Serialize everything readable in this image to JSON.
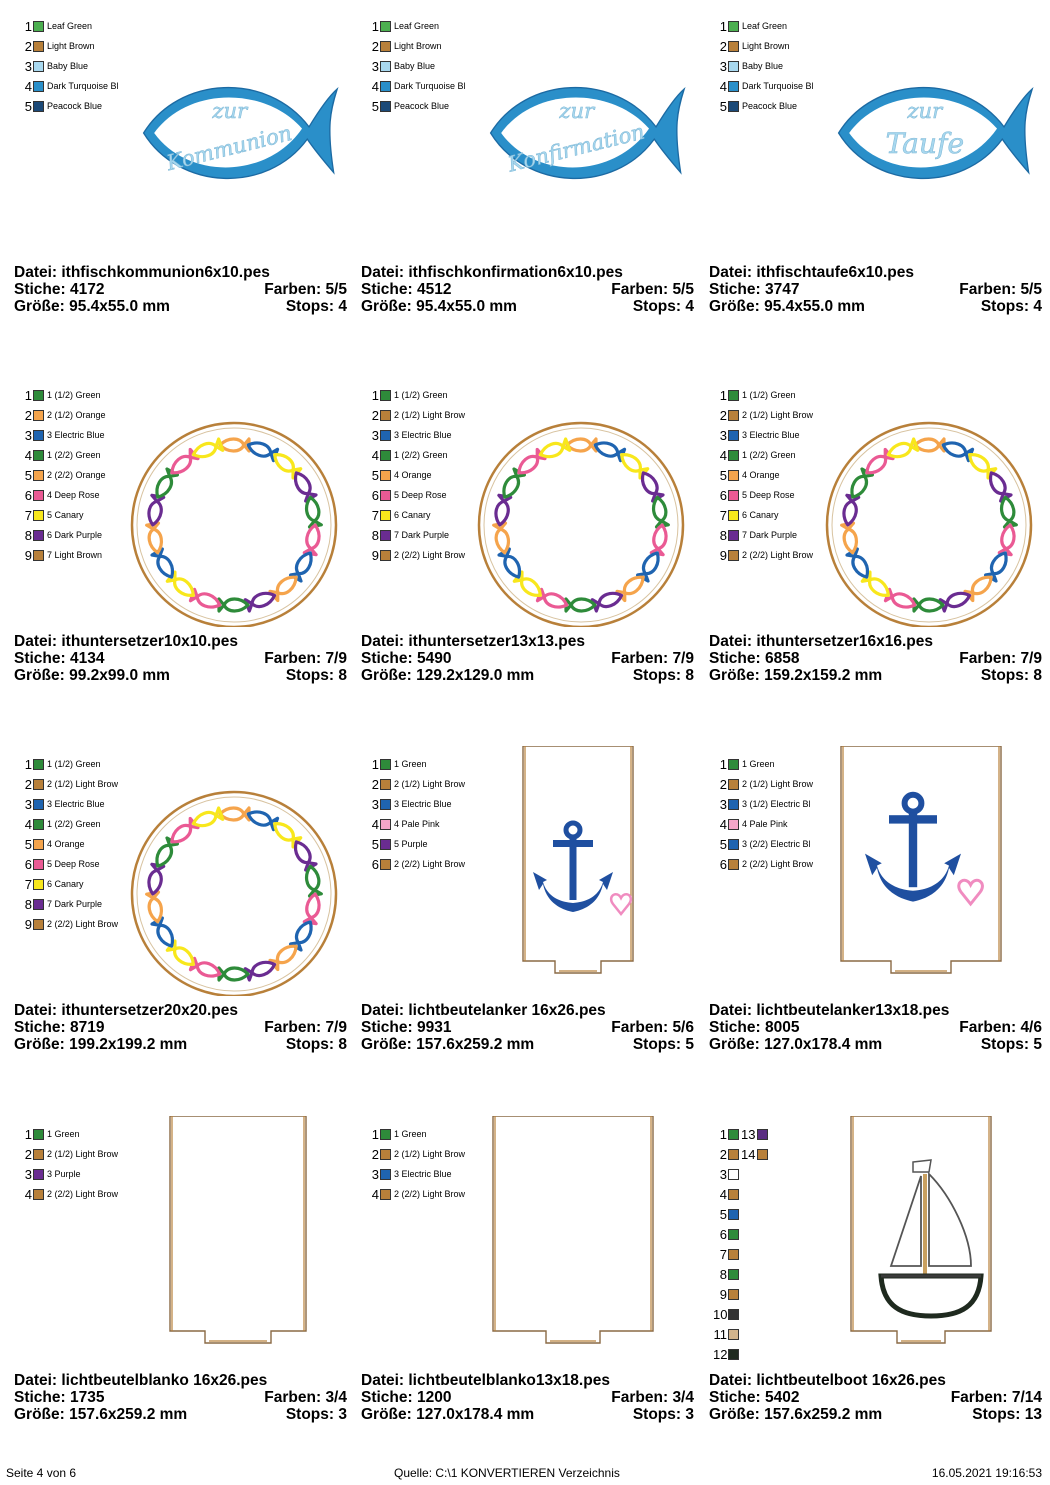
{
  "designs": [
    {
      "id": "fisch-kommunion",
      "art": "fish",
      "text1": "zur",
      "text2": "Kommunion",
      "file_label": "Datei: ithfischkommunion6x10.pes",
      "stitches_label": "Stiche: 4172",
      "colors_label": "Farben: 5/5",
      "size_label": "Größe: 95.4x55.0 mm",
      "stops_label": "Stops: 4",
      "colors": [
        {
          "num": "1",
          "name": "Leaf Green",
          "hex": "#4caf50"
        },
        {
          "num": "2",
          "name": "Light Brown",
          "hex": "#b8803a"
        },
        {
          "num": "3",
          "name": "Baby Blue",
          "hex": "#a8d8ef"
        },
        {
          "num": "4",
          "name": "Dark Turquoise Bl",
          "hex": "#2a8fc9"
        },
        {
          "num": "5",
          "name": "Peacock Blue",
          "hex": "#1c4a78"
        }
      ]
    },
    {
      "id": "fisch-konfirmation",
      "art": "fish",
      "text1": "zur",
      "text2": "Konfirmation",
      "file_label": "Datei: ithfischkonfirmation6x10.pes",
      "stitches_label": "Stiche: 4512",
      "colors_label": "Farben: 5/5",
      "size_label": "Größe: 95.4x55.0 mm",
      "stops_label": "Stops: 4",
      "colors": [
        {
          "num": "1",
          "name": "Leaf Green",
          "hex": "#4caf50"
        },
        {
          "num": "2",
          "name": "Light Brown",
          "hex": "#b8803a"
        },
        {
          "num": "3",
          "name": "Baby Blue",
          "hex": "#a8d8ef"
        },
        {
          "num": "4",
          "name": "Dark Turquoise Bl",
          "hex": "#2a8fc9"
        },
        {
          "num": "5",
          "name": "Peacock Blue",
          "hex": "#1c4a78"
        }
      ]
    },
    {
      "id": "fisch-taufe",
      "art": "fish",
      "text1": "zur",
      "text2": "Taufe",
      "file_label": "Datei: ithfischtaufe6x10.pes",
      "stitches_label": "Stiche: 3747",
      "colors_label": "Farben: 5/5",
      "size_label": "Größe: 95.4x55.0 mm",
      "stops_label": "Stops: 4",
      "colors": [
        {
          "num": "1",
          "name": "Leaf Green",
          "hex": "#4caf50"
        },
        {
          "num": "2",
          "name": "Light Brown",
          "hex": "#b8803a"
        },
        {
          "num": "3",
          "name": "Baby Blue",
          "hex": "#a8d8ef"
        },
        {
          "num": "4",
          "name": "Dark Turquoise Bl",
          "hex": "#2a8fc9"
        },
        {
          "num": "5",
          "name": "Peacock Blue",
          "hex": "#1c4a78"
        }
      ]
    },
    {
      "id": "untersetzer-10",
      "art": "ring",
      "file_label": "Datei: ithuntersetzer10x10.pes",
      "stitches_label": "Stiche: 4134",
      "colors_label": "Farben: 7/9",
      "size_label": "Größe: 99.2x99.0 mm",
      "stops_label": "Stops: 8",
      "colors": [
        {
          "num": "1",
          "name": "1 (1/2) Green",
          "hex": "#2e8b3a"
        },
        {
          "num": "2",
          "name": "2 (1/2) Orange",
          "hex": "#f5a44c"
        },
        {
          "num": "3",
          "name": "3 Electric Blue",
          "hex": "#1f64b0"
        },
        {
          "num": "4",
          "name": "1 (2/2) Green",
          "hex": "#2e8b3a"
        },
        {
          "num": "5",
          "name": "2 (2/2) Orange",
          "hex": "#f5a44c"
        },
        {
          "num": "6",
          "name": "4 Deep Rose",
          "hex": "#ea5a94"
        },
        {
          "num": "7",
          "name": "5 Canary",
          "hex": "#f8e71c"
        },
        {
          "num": "8",
          "name": "6 Dark Purple",
          "hex": "#6a2c91"
        },
        {
          "num": "9",
          "name": "7 Light Brown",
          "hex": "#b8803a"
        }
      ]
    },
    {
      "id": "untersetzer-13",
      "art": "ring",
      "file_label": "Datei: ithuntersetzer13x13.pes",
      "stitches_label": "Stiche: 5490",
      "colors_label": "Farben: 7/9",
      "size_label": "Größe: 129.2x129.0 mm",
      "stops_label": "Stops: 8",
      "colors": [
        {
          "num": "1",
          "name": "1 (1/2) Green",
          "hex": "#2e8b3a"
        },
        {
          "num": "2",
          "name": "2 (1/2) Light Brow",
          "hex": "#b8803a"
        },
        {
          "num": "3",
          "name": "3 Electric Blue",
          "hex": "#1f64b0"
        },
        {
          "num": "4",
          "name": "1 (2/2) Green",
          "hex": "#2e8b3a"
        },
        {
          "num": "5",
          "name": "4 Orange",
          "hex": "#f5a44c"
        },
        {
          "num": "6",
          "name": "5 Deep Rose",
          "hex": "#ea5a94"
        },
        {
          "num": "7",
          "name": "6 Canary",
          "hex": "#f8e71c"
        },
        {
          "num": "8",
          "name": "7 Dark Purple",
          "hex": "#6a2c91"
        },
        {
          "num": "9",
          "name": "2 (2/2) Light Brow",
          "hex": "#b8803a"
        }
      ]
    },
    {
      "id": "untersetzer-16",
      "art": "ring",
      "file_label": "Datei: ithuntersetzer16x16.pes",
      "stitches_label": "Stiche: 6858",
      "colors_label": "Farben: 7/9",
      "size_label": "Größe: 159.2x159.2 mm",
      "stops_label": "Stops: 8",
      "colors": [
        {
          "num": "1",
          "name": "1 (1/2) Green",
          "hex": "#2e8b3a"
        },
        {
          "num": "2",
          "name": "2 (1/2) Light Brow",
          "hex": "#b8803a"
        },
        {
          "num": "3",
          "name": "3 Electric Blue",
          "hex": "#1f64b0"
        },
        {
          "num": "4",
          "name": "1 (2/2) Green",
          "hex": "#2e8b3a"
        },
        {
          "num": "5",
          "name": "4 Orange",
          "hex": "#f5a44c"
        },
        {
          "num": "6",
          "name": "5 Deep Rose",
          "hex": "#ea5a94"
        },
        {
          "num": "7",
          "name": "6 Canary",
          "hex": "#f8e71c"
        },
        {
          "num": "8",
          "name": "7 Dark Purple",
          "hex": "#6a2c91"
        },
        {
          "num": "9",
          "name": "2 (2/2) Light Brow",
          "hex": "#b8803a"
        }
      ]
    },
    {
      "id": "untersetzer-20",
      "art": "ring",
      "file_label": "Datei: ithuntersetzer20x20.pes",
      "stitches_label": "Stiche: 8719",
      "colors_label": "Farben: 7/9",
      "size_label": "Größe: 199.2x199.2 mm",
      "stops_label": "Stops: 8",
      "colors": [
        {
          "num": "1",
          "name": "1 (1/2) Green",
          "hex": "#2e8b3a"
        },
        {
          "num": "2",
          "name": "2 (1/2) Light Brow",
          "hex": "#b8803a"
        },
        {
          "num": "3",
          "name": "3 Electric Blue",
          "hex": "#1f64b0"
        },
        {
          "num": "4",
          "name": "1 (2/2) Green",
          "hex": "#2e8b3a"
        },
        {
          "num": "5",
          "name": "4 Orange",
          "hex": "#f5a44c"
        },
        {
          "num": "6",
          "name": "5 Deep Rose",
          "hex": "#ea5a94"
        },
        {
          "num": "7",
          "name": "6 Canary",
          "hex": "#f8e71c"
        },
        {
          "num": "8",
          "name": "7 Dark Purple",
          "hex": "#6a2c91"
        },
        {
          "num": "9",
          "name": "2 (2/2) Light Brow",
          "hex": "#b8803a"
        }
      ]
    },
    {
      "id": "lichtbeutel-anker-16",
      "art": "bag-anchor",
      "file_label": "Datei: lichtbeutelanker 16x26.pes",
      "stitches_label": "Stiche: 9931",
      "colors_label": "Farben: 5/6",
      "size_label": "Größe: 157.6x259.2 mm",
      "stops_label": "Stops: 5",
      "colors": [
        {
          "num": "1",
          "name": "1 Green",
          "hex": "#2e8b3a"
        },
        {
          "num": "2",
          "name": "2 (1/2) Light Brow",
          "hex": "#b8803a"
        },
        {
          "num": "3",
          "name": "3 Electric Blue",
          "hex": "#1f64b0"
        },
        {
          "num": "4",
          "name": "4 Pale Pink",
          "hex": "#f4a6c8"
        },
        {
          "num": "5",
          "name": "5 Purple",
          "hex": "#6a2c91"
        },
        {
          "num": "6",
          "name": "2 (2/2) Light Brow",
          "hex": "#b8803a"
        }
      ]
    },
    {
      "id": "lichtbeutel-anker-13",
      "art": "bag-anchor-large",
      "file_label": "Datei: lichtbeutelanker13x18.pes",
      "stitches_label": "Stiche: 8005",
      "colors_label": "Farben: 4/6",
      "size_label": "Größe: 127.0x178.4 mm",
      "stops_label": "Stops: 5",
      "colors": [
        {
          "num": "1",
          "name": "1 Green",
          "hex": "#2e8b3a"
        },
        {
          "num": "2",
          "name": "2 (1/2) Light Brow",
          "hex": "#b8803a"
        },
        {
          "num": "3",
          "name": "3 (1/2) Electric Bl",
          "hex": "#1f64b0"
        },
        {
          "num": "4",
          "name": "4 Pale Pink",
          "hex": "#f4a6c8"
        },
        {
          "num": "5",
          "name": "3 (2/2) Electric Bl",
          "hex": "#1f64b0"
        },
        {
          "num": "6",
          "name": "2 (2/2) Light Brow",
          "hex": "#b8803a"
        }
      ]
    },
    {
      "id": "lichtbeutel-blanko-16",
      "art": "bag-blank",
      "file_label": "Datei: lichtbeutelblanko 16x26.pes",
      "stitches_label": "Stiche: 1735",
      "colors_label": "Farben: 3/4",
      "size_label": "Größe: 157.6x259.2 mm",
      "stops_label": "Stops: 3",
      "colors": [
        {
          "num": "1",
          "name": "1 Green",
          "hex": "#2e8b3a"
        },
        {
          "num": "2",
          "name": "2 (1/2) Light Brow",
          "hex": "#b8803a"
        },
        {
          "num": "3",
          "name": "3 Purple",
          "hex": "#6a2c91"
        },
        {
          "num": "4",
          "name": "2 (2/2) Light Brow",
          "hex": "#b8803a"
        }
      ]
    },
    {
      "id": "lichtbeutel-blanko-13",
      "art": "bag-blank-wide",
      "file_label": "Datei: lichtbeutelblanko13x18.pes",
      "stitches_label": "Stiche: 1200",
      "colors_label": "Farben: 3/4",
      "size_label": "Größe: 127.0x178.4 mm",
      "stops_label": "Stops: 3",
      "colors": [
        {
          "num": "1",
          "name": "1 Green",
          "hex": "#2e8b3a"
        },
        {
          "num": "2",
          "name": "2 (1/2) Light Brow",
          "hex": "#b8803a"
        },
        {
          "num": "3",
          "name": "3 Electric Blue",
          "hex": "#1f64b0"
        },
        {
          "num": "4",
          "name": "2 (2/2) Light Brow",
          "hex": "#b8803a"
        }
      ]
    },
    {
      "id": "lichtbeutel-boot-16",
      "art": "bag-boat",
      "file_label": "Datei: lichtbeutelboot 16x26.pes",
      "stitches_label": "Stiche: 5402",
      "colors_label": "Farben: 7/14",
      "size_label": "Größe: 157.6x259.2 mm",
      "stops_label": "Stops: 13",
      "colors": [
        {
          "num": "1",
          "name": "",
          "hex": "#2e8b3a"
        },
        {
          "num": "2",
          "name": "",
          "hex": "#b8803a"
        },
        {
          "num": "3",
          "name": "",
          "hex": "#ffffff"
        },
        {
          "num": "4",
          "name": "",
          "hex": "#b8803a"
        },
        {
          "num": "5",
          "name": "",
          "hex": "#1f64b0"
        },
        {
          "num": "6",
          "name": "",
          "hex": "#2e8b3a"
        },
        {
          "num": "7",
          "name": "",
          "hex": "#b8803a"
        },
        {
          "num": "8",
          "name": "",
          "hex": "#2e8b3a"
        },
        {
          "num": "9",
          "name": "",
          "hex": "#b8803a"
        },
        {
          "num": "10",
          "name": "",
          "hex": "#333333"
        },
        {
          "num": "11",
          "name": "",
          "hex": "#d2b48c"
        },
        {
          "num": "12",
          "name": "",
          "hex": "#1f2a1f"
        }
      ],
      "colors_extra": [
        {
          "num": "13",
          "hex": "#5a2d82"
        },
        {
          "num": "14",
          "hex": "#b8803a"
        }
      ]
    }
  ],
  "footer": {
    "page": "Seite 4 von 6",
    "source": "Quelle: C:\\1 KONVERTIEREN Verzeichnis",
    "date": "16.05.2021 19:16:53"
  },
  "palette": {
    "fish_outer": "#2a8fc9",
    "fish_inner": "#a8d8ef",
    "ring_outline": "#b8803a",
    "anchor": "#1f4fa0",
    "heart": "#f08cc0"
  }
}
